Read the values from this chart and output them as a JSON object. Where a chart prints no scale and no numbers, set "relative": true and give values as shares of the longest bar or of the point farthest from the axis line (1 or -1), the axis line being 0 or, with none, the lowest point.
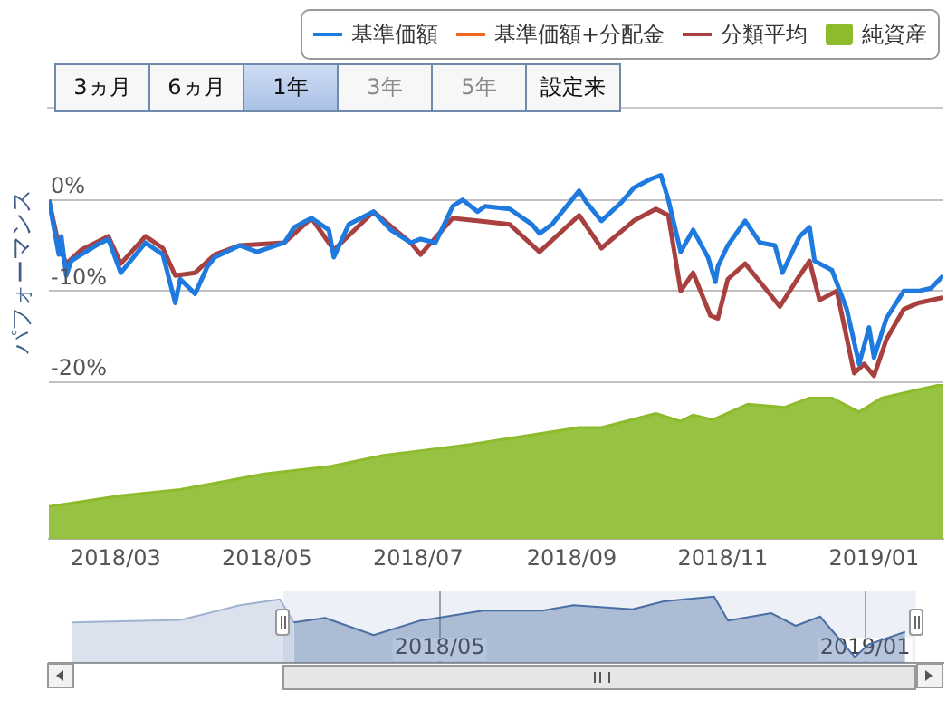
{
  "chart_data": [
    {
      "type": "line",
      "ylabel": "パフォーマンス",
      "legend": "top right",
      "grid": "y",
      "marker": "none",
      "line_style": "solid",
      "tick_labels": "y",
      "annotations": [
        "3ヵ月",
        "6ヵ月",
        "1年",
        "3年",
        "5年",
        "設定来"
      ],
      "xlim": [
        "2018-02-02",
        "2019-01-29"
      ],
      "ylim": [
        -20,
        10
      ],
      "yticks": [
        {
          "value": 0,
          "label": "0%"
        },
        {
          "value": -10,
          "label": "-10%"
        },
        {
          "value": -20,
          "label": "-20%"
        }
      ],
      "series": [
        {
          "name": "基準価額",
          "color": "#1f7ae0",
          "x": [
            "2018-02-02",
            "2018-02-06",
            "2018-02-07",
            "2018-02-09",
            "2018-02-11",
            "2018-02-15",
            "2018-02-21",
            "2018-02-26",
            "2018-03-03",
            "2018-03-13",
            "2018-03-20",
            "2018-03-25",
            "2018-03-27",
            "2018-04-02",
            "2018-04-07",
            "2018-04-10",
            "2018-04-20",
            "2018-04-27",
            "2018-05-08",
            "2018-05-12",
            "2018-05-19",
            "2018-05-26",
            "2018-05-28",
            "2018-06-03",
            "2018-06-13",
            "2018-06-20",
            "2018-06-28",
            "2018-07-02",
            "2018-07-08",
            "2018-07-15",
            "2018-07-19",
            "2018-07-25",
            "2018-07-28",
            "2018-08-07",
            "2018-08-16",
            "2018-08-19",
            "2018-08-24",
            "2018-09-04",
            "2018-09-07",
            "2018-09-13",
            "2018-09-21",
            "2018-09-26",
            "2018-10-03",
            "2018-10-07",
            "2018-10-10",
            "2018-10-15",
            "2018-10-20",
            "2018-10-26",
            "2018-10-29",
            "2018-10-30",
            "2018-11-03",
            "2018-11-10",
            "2018-11-16",
            "2018-11-22",
            "2018-11-25",
            "2018-12-02",
            "2018-12-06",
            "2018-12-08",
            "2018-12-15",
            "2018-12-21",
            "2018-12-26",
            "2018-12-30",
            "2019-01-01",
            "2019-01-06",
            "2019-01-13",
            "2019-01-19",
            "2019-01-24",
            "2019-01-29"
          ],
          "values": [
            0,
            -6,
            -4,
            -8.3,
            -6.7,
            -6,
            -5,
            -4.3,
            -8,
            -4.7,
            -6,
            -11.3,
            -8.7,
            -10.3,
            -7.3,
            -6.3,
            -5,
            -5.7,
            -4.7,
            -3,
            -2,
            -3.3,
            -6.3,
            -2.7,
            -1.3,
            -3.3,
            -4.7,
            -4.3,
            -4.7,
            -0.7,
            0,
            -1.3,
            -0.7,
            -1,
            -2.7,
            -3.7,
            -2.7,
            1,
            -0.3,
            -2.3,
            -0.3,
            1.3,
            2.3,
            2.7,
            0,
            -5.7,
            -3.3,
            -6.3,
            -9,
            -7.3,
            -5,
            -2.3,
            -4.7,
            -5,
            -8,
            -4,
            -3,
            -6.7,
            -7.7,
            -12,
            -18,
            -14,
            -17.3,
            -13,
            -10,
            -10,
            -9.7,
            -8.3
          ]
        },
        {
          "name": "基準価額+分配金",
          "color": "#f26522"
        },
        {
          "name": "分類平均",
          "color": "#a8403f",
          "x": [
            "2018-02-02",
            "2018-02-06",
            "2018-02-09",
            "2018-02-15",
            "2018-02-26",
            "2018-03-03",
            "2018-03-13",
            "2018-03-20",
            "2018-03-25",
            "2018-04-02",
            "2018-04-10",
            "2018-04-20",
            "2018-05-08",
            "2018-05-19",
            "2018-05-28",
            "2018-06-13",
            "2018-06-28",
            "2018-07-02",
            "2018-07-15",
            "2018-07-25",
            "2018-08-07",
            "2018-08-19",
            "2018-09-04",
            "2018-09-13",
            "2018-09-26",
            "2018-10-05",
            "2018-10-10",
            "2018-10-15",
            "2018-10-20",
            "2018-10-27",
            "2018-10-30",
            "2018-11-03",
            "2018-11-10",
            "2018-11-16",
            "2018-11-24",
            "2018-12-02",
            "2018-12-06",
            "2018-12-10",
            "2018-12-17",
            "2018-12-24",
            "2018-12-28",
            "2019-01-01",
            "2019-01-06",
            "2019-01-13",
            "2019-01-19",
            "2019-01-29"
          ],
          "values": [
            0,
            -5,
            -7,
            -5.5,
            -4,
            -7,
            -4,
            -5.3,
            -8.3,
            -8,
            -6,
            -5,
            -4.7,
            -2,
            -5.5,
            -1.3,
            -4.7,
            -6,
            -2,
            -2.3,
            -2.7,
            -5.7,
            -1.7,
            -5.3,
            -2.3,
            -1,
            -1.7,
            -10,
            -8,
            -12.7,
            -13,
            -8.7,
            -7,
            -9,
            -11.7,
            -8.3,
            -6.7,
            -11,
            -10,
            -19,
            -18,
            -19.3,
            -15.3,
            -12,
            -11.3,
            -10.7
          ]
        }
      ]
    },
    {
      "type": "area",
      "relative": true,
      "marker": "none",
      "tick_labels": "x",
      "xlim": [
        "2018-02-02",
        "2019-01-29"
      ],
      "xticks": [
        {
          "value": "2018-03-01",
          "label": "2018/03"
        },
        {
          "value": "2018-05-01",
          "label": "2018/05"
        },
        {
          "value": "2018-07-01",
          "label": "2018/07"
        },
        {
          "value": "2018-09-01",
          "label": "2018/09"
        },
        {
          "value": "2018-11-01",
          "label": "2018/11"
        },
        {
          "value": "2019-01-01",
          "label": "2019/01"
        }
      ],
      "x": [
        "2018-02-02",
        "2018-03-03",
        "2018-03-27",
        "2018-04-30",
        "2018-05-27",
        "2018-06-17",
        "2018-07-02",
        "2018-07-22",
        "2018-09-04",
        "2018-09-13",
        "2018-10-05",
        "2018-10-15",
        "2018-10-20",
        "2018-10-28",
        "2018-11-11",
        "2018-11-26",
        "2018-12-06",
        "2018-12-15",
        "2018-12-26",
        "2019-01-04",
        "2019-01-29"
      ],
      "series": [
        {
          "name": "純資産",
          "color": "#8dbb2c",
          "values": [
            0.21,
            0.28,
            0.32,
            0.42,
            0.47,
            0.54,
            0.57,
            0.61,
            0.72,
            0.72,
            0.81,
            0.76,
            0.8,
            0.77,
            0.87,
            0.85,
            0.91,
            0.91,
            0.82,
            0.91,
            1.0
          ]
        }
      ]
    },
    {
      "type": "area",
      "relative": true,
      "grid": "x",
      "marker": "none",
      "color": "#4a6fa5",
      "xlim": [
        "2017-09-18",
        "2019-02-15"
      ],
      "xticks": [
        {
          "value": "2018-05-01",
          "label": "2018/05"
        },
        {
          "value": "2019-01-01",
          "label": "2019/01"
        }
      ],
      "bands": [
        {
          "axis": "x",
          "from": "2018-01-31",
          "to": "2019-01-30"
        }
      ],
      "x": [
        "2017-10-01",
        "2017-12-03",
        "2018-01-06",
        "2018-01-29",
        "2018-02-06",
        "2018-02-24",
        "2018-03-24",
        "2018-04-20",
        "2018-05-26",
        "2018-06-29",
        "2018-07-17",
        "2018-08-20",
        "2018-09-07",
        "2018-10-06",
        "2018-10-14",
        "2018-11-08",
        "2018-11-22",
        "2018-12-06",
        "2018-12-26",
        "2019-01-03",
        "2019-01-24"
      ],
      "values": [
        0.61,
        0.65,
        0.87,
        0.96,
        0.61,
        0.68,
        0.42,
        0.64,
        0.79,
        0.79,
        0.87,
        0.81,
        0.93,
        1.0,
        0.64,
        0.75,
        0.56,
        0.7,
        0.09,
        0.28,
        0.47
      ]
    }
  ]
}
